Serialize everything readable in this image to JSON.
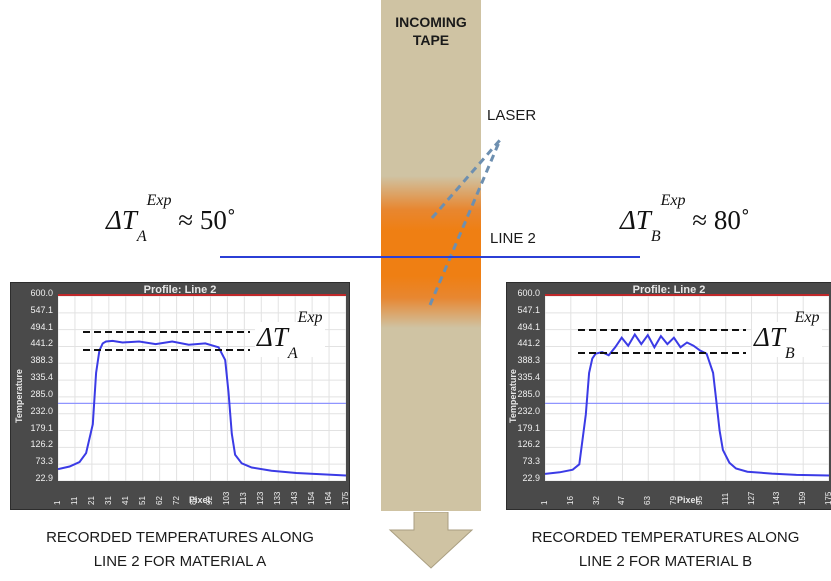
{
  "tape_label_line1": "INCOMING",
  "tape_label_line2": "TAPE",
  "laser_label": "LASER",
  "line_label": "LINE 2",
  "delta_symbol": "ΔT",
  "material_a": "A",
  "material_b": "B",
  "exp_superscript": "Exp",
  "delta_a_value": "≈ 50˚",
  "delta_b_value": "≈ 80˚",
  "caption_a_line1": "RECORDED TEMPERATURES ALONG",
  "caption_a_line2": "LINE 2 FOR MATERIAL A",
  "caption_b_line1": "RECORDED TEMPERATURES ALONG",
  "caption_b_line2": "LINE 2 FOR MATERIAL B",
  "colors": {
    "tape": "#cfc3a3",
    "hot_zone": "#ef7f13",
    "line2": "#2b3fd6",
    "profile": "#3b3be6",
    "laser": "#6d8fb0"
  },
  "charts": [
    {
      "type": "line",
      "title": "Profile: Line 2",
      "ylabel": "Temperature",
      "xlabel": "Pixel",
      "y_ticks": [
        "600.0",
        "547.1",
        "494.1",
        "441.2",
        "388.3",
        "335.4",
        "285.0",
        "232.0",
        "179.1",
        "126.2",
        "73.3",
        "22.9"
      ],
      "x_ticks": [
        "1",
        "11",
        "21",
        "31",
        "41",
        "51",
        "62",
        "72",
        "82",
        "92",
        "103",
        "113",
        "123",
        "133",
        "143",
        "154",
        "164",
        "175"
      ],
      "ylim": [
        22.9,
        600.0
      ],
      "xlim": [
        1,
        175
      ],
      "x": [
        1,
        8,
        14,
        18,
        22,
        24,
        26,
        28,
        30,
        34,
        40,
        50,
        60,
        70,
        80,
        90,
        98,
        102,
        104,
        106,
        108,
        112,
        118,
        130,
        145,
        160,
        175
      ],
      "y": [
        60,
        68,
        82,
        110,
        200,
        360,
        430,
        452,
        458,
        460,
        455,
        458,
        450,
        458,
        448,
        452,
        440,
        400,
        300,
        170,
        105,
        78,
        65,
        55,
        48,
        44,
        40
      ],
      "reference_line_y": 265
    },
    {
      "type": "line",
      "title": "Profile: Line 2",
      "ylabel": "Temperature",
      "xlabel": "Pixel",
      "y_ticks": [
        "600.0",
        "547.1",
        "494.1",
        "441.2",
        "388.3",
        "335.4",
        "285.0",
        "232.0",
        "179.1",
        "126.2",
        "73.3",
        "22.9"
      ],
      "x_ticks": [
        "1",
        "16",
        "32",
        "47",
        "63",
        "79",
        "95",
        "111",
        "127",
        "143",
        "159",
        "175"
      ],
      "ylim": [
        22.9,
        600.0
      ],
      "xlim": [
        1,
        175
      ],
      "x": [
        1,
        10,
        18,
        22,
        26,
        28,
        30,
        32,
        36,
        40,
        44,
        48,
        52,
        56,
        60,
        64,
        68,
        72,
        76,
        80,
        84,
        88,
        92,
        96,
        100,
        104,
        106,
        108,
        110,
        114,
        118,
        125,
        140,
        155,
        175
      ],
      "y": [
        45,
        50,
        58,
        75,
        230,
        360,
        405,
        420,
        425,
        415,
        440,
        470,
        445,
        480,
        450,
        478,
        440,
        475,
        450,
        470,
        440,
        455,
        445,
        430,
        420,
        360,
        270,
        180,
        120,
        80,
        62,
        52,
        46,
        42,
        40
      ],
      "reference_line_y": 265
    }
  ]
}
